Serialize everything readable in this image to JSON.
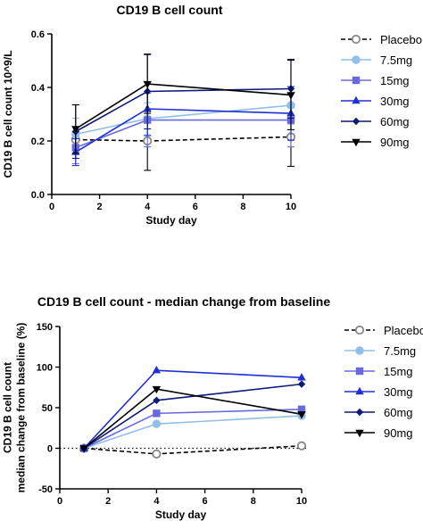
{
  "chart_data": [
    {
      "type": "line",
      "title": "CD19 B cell count",
      "xlabel": "Study day",
      "ylabel": "CD19 B cell count 10^9/L",
      "xlim": [
        0,
        10
      ],
      "ylim": [
        0,
        0.6
      ],
      "xticks": [
        "0",
        "2",
        "4",
        "6",
        "8",
        "10"
      ],
      "yticks": [
        "0.0",
        "0.2",
        "0.4",
        "0.6"
      ],
      "legend_position": "right",
      "grid": false,
      "error_bars": true,
      "x": [
        1,
        4,
        10
      ],
      "series": [
        {
          "name": "Placebo",
          "values": [
            0.205,
            0.2,
            0.215
          ],
          "err": [
            0.03,
            0.11,
            0.11
          ],
          "color": "#000000",
          "marker": "open-circle",
          "dashed": true
        },
        {
          "name": "7.5mg",
          "values": [
            0.225,
            0.283,
            0.333
          ],
          "err": [
            0.06,
            0.06,
            0.07
          ],
          "color": "#8fbfea",
          "marker": "circle",
          "dashed": false
        },
        {
          "name": "15mg",
          "values": [
            0.175,
            0.278,
            0.278
          ],
          "err": [
            0.06,
            0.1,
            0.1
          ],
          "color": "#6a6ae0",
          "marker": "square",
          "dashed": false
        },
        {
          "name": "30mg",
          "values": [
            0.158,
            0.32,
            0.303
          ],
          "err": [
            0.05,
            0.1,
            0.1
          ],
          "color": "#1f2fd6",
          "marker": "triangle-up",
          "dashed": false
        },
        {
          "name": "60mg",
          "values": [
            0.235,
            0.385,
            0.395
          ],
          "err": [
            0.1,
            0.14,
            0.11
          ],
          "color": "#0d1a7a",
          "marker": "diamond",
          "dashed": false
        },
        {
          "name": "90mg",
          "values": [
            0.245,
            0.413,
            0.372
          ],
          "err": [
            0.09,
            0.11,
            0.13
          ],
          "color": "#000000",
          "marker": "triangle-down",
          "dashed": false
        }
      ]
    },
    {
      "type": "line",
      "title": "CD19 B cell count - median change from baseline",
      "xlabel": "Study day",
      "ylabel": "CD19 B cell count median change from baseline (%)",
      "xlim": [
        0,
        10
      ],
      "ylim": [
        -50,
        150
      ],
      "xticks": [
        "0",
        "2",
        "4",
        "6",
        "8",
        "10"
      ],
      "yticks": [
        "-50",
        "0",
        "50",
        "100",
        "150"
      ],
      "legend_position": "right",
      "grid": false,
      "reference_line_y": 0,
      "x": [
        1,
        4,
        10
      ],
      "series": [
        {
          "name": "Placebo",
          "values": [
            0,
            -7,
            3
          ],
          "color": "#000000",
          "marker": "open-circle",
          "dashed": true
        },
        {
          "name": "7.5mg",
          "values": [
            0,
            30,
            40
          ],
          "color": "#8fbfea",
          "marker": "circle",
          "dashed": false
        },
        {
          "name": "15mg",
          "values": [
            0,
            43,
            48
          ],
          "color": "#6a6ae0",
          "marker": "square",
          "dashed": false
        },
        {
          "name": "30mg",
          "values": [
            0,
            96,
            87
          ],
          "color": "#1f2fd6",
          "marker": "triangle-up",
          "dashed": false
        },
        {
          "name": "60mg",
          "values": [
            0,
            59,
            79
          ],
          "color": "#0d1a7a",
          "marker": "diamond",
          "dashed": false
        },
        {
          "name": "90mg",
          "values": [
            0,
            73,
            42
          ],
          "color": "#000000",
          "marker": "triangle-down",
          "dashed": false
        }
      ]
    }
  ]
}
